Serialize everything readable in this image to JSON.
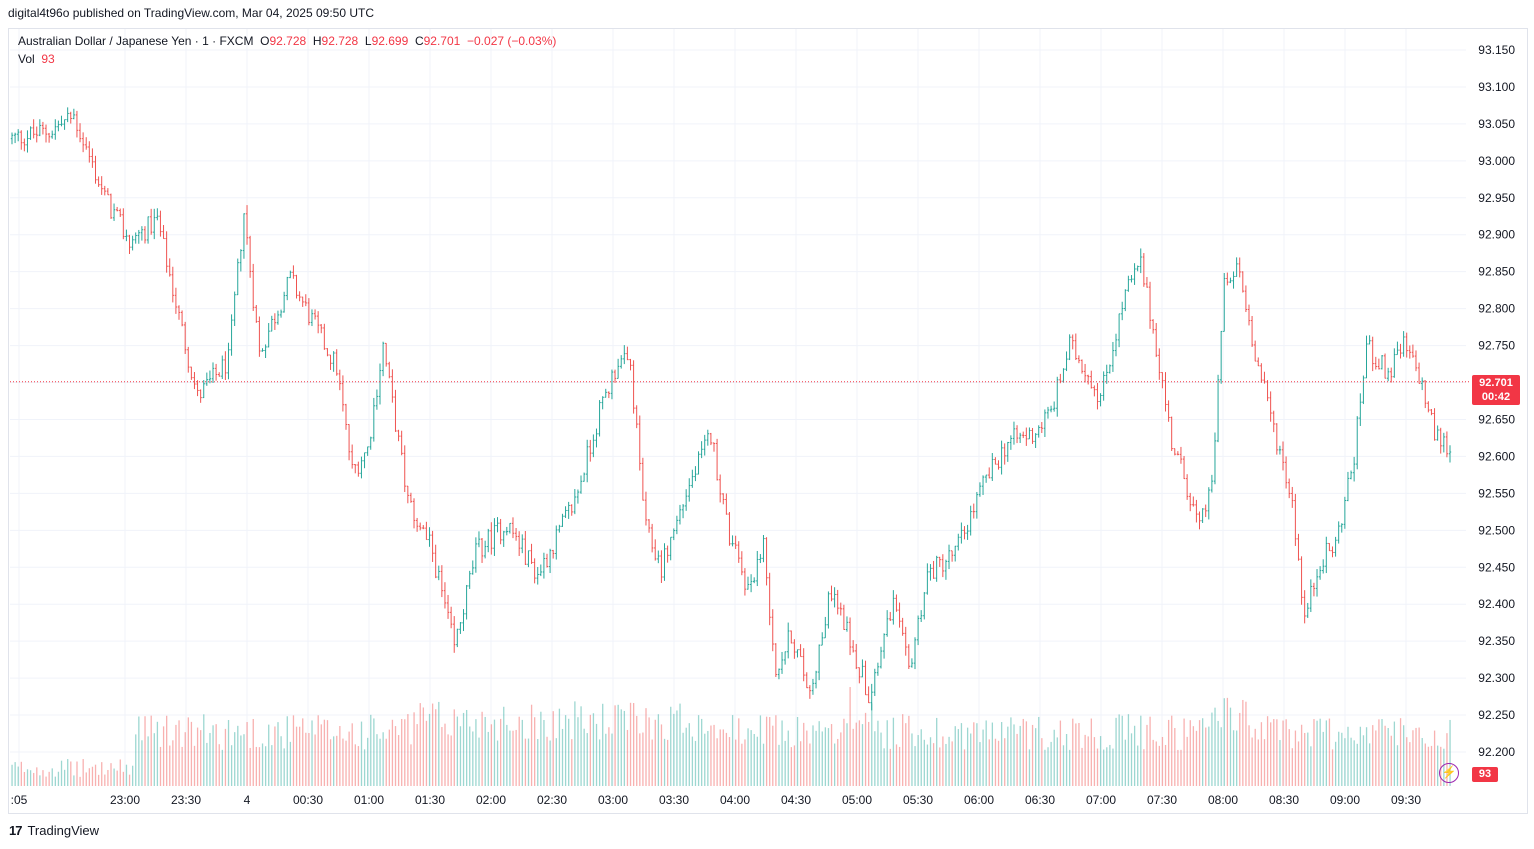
{
  "header": {
    "published_text": "digital4t96o published on TradingView.com, Mar 04, 2025 09:50 UTC"
  },
  "legend": {
    "symbol_text": "Australian Dollar / Japanese Yen · 1 · FXCM",
    "open_label": "O",
    "open": "92.728",
    "high_label": "H",
    "high": "92.728",
    "low_label": "L",
    "low": "92.699",
    "close_label": "C",
    "close": "92.701",
    "change": "−0.027 (−0.03%)",
    "vol_label": "Vol",
    "vol_value": "93"
  },
  "badges": {
    "last_price": "92.701",
    "countdown": "00:42",
    "volume": "93",
    "bolt_icon": "⚡"
  },
  "footer": {
    "brand": "TradingView",
    "logo_text": "17"
  },
  "colors": {
    "up": "#26a69a",
    "down": "#ef5350",
    "price_line": "#f23645",
    "grid": "#f0f3fa",
    "axis_text": "#131722"
  },
  "chart_data": {
    "type": "ohlc",
    "series_name": "Australian Dollar / Japanese Yen · 1 · FXCM",
    "ylim": [
      92.125,
      93.175
    ],
    "y_ticks": [
      "93.150",
      "93.100",
      "93.050",
      "93.000",
      "92.950",
      "92.900",
      "92.850",
      "92.800",
      "92.750",
      "92.700",
      "92.650",
      "92.600",
      "92.550",
      "92.500",
      "92.450",
      "92.400",
      "92.350",
      "92.300",
      "92.250",
      "92.200"
    ],
    "x_ticks": [
      ":05",
      "23:00",
      "23:30",
      "4",
      "00:30",
      "01:00",
      "01:30",
      "02:00",
      "02:30",
      "03:00",
      "03:30",
      "04:00",
      "04:30",
      "05:00",
      "05:30",
      "06:00",
      "06:30",
      "07:00",
      "07:30",
      "08:00",
      "08:30",
      "09:00",
      "09:30"
    ],
    "last_price": 92.701,
    "close_path": [
      [
        0,
        93.03
      ],
      [
        12,
        93.04
      ],
      [
        20,
        93.06
      ],
      [
        30,
        92.95
      ],
      [
        38,
        92.89
      ],
      [
        47,
        92.92
      ],
      [
        55,
        92.77
      ],
      [
        60,
        92.68
      ],
      [
        70,
        92.73
      ],
      [
        75,
        92.93
      ],
      [
        80,
        92.74
      ],
      [
        90,
        92.84
      ],
      [
        95,
        92.8
      ],
      [
        105,
        92.72
      ],
      [
        110,
        92.58
      ],
      [
        115,
        92.61
      ],
      [
        120,
        92.75
      ],
      [
        128,
        92.54
      ],
      [
        136,
        92.47
      ],
      [
        143,
        92.34
      ],
      [
        150,
        92.47
      ],
      [
        160,
        92.51
      ],
      [
        170,
        92.44
      ],
      [
        182,
        92.54
      ],
      [
        190,
        92.66
      ],
      [
        196,
        92.73
      ],
      [
        200,
        92.72
      ],
      [
        205,
        92.5
      ],
      [
        210,
        92.45
      ],
      [
        218,
        92.55
      ],
      [
        226,
        92.63
      ],
      [
        232,
        92.49
      ],
      [
        238,
        92.42
      ],
      [
        243,
        92.48
      ],
      [
        247,
        92.31
      ],
      [
        252,
        92.36
      ],
      [
        258,
        92.28
      ],
      [
        265,
        92.42
      ],
      [
        272,
        92.34
      ],
      [
        277,
        92.28
      ],
      [
        285,
        92.4
      ],
      [
        290,
        92.31
      ],
      [
        296,
        92.44
      ],
      [
        305,
        92.47
      ],
      [
        314,
        92.56
      ],
      [
        322,
        92.62
      ],
      [
        330,
        92.63
      ],
      [
        336,
        92.66
      ],
      [
        342,
        92.75
      ],
      [
        347,
        92.72
      ],
      [
        352,
        92.68
      ],
      [
        360,
        92.82
      ],
      [
        365,
        92.86
      ],
      [
        370,
        92.75
      ],
      [
        375,
        92.62
      ],
      [
        380,
        92.56
      ],
      [
        384,
        92.5
      ],
      [
        388,
        92.56
      ],
      [
        392,
        92.83
      ],
      [
        397,
        92.85
      ],
      [
        403,
        92.72
      ],
      [
        408,
        92.64
      ],
      [
        414,
        92.54
      ],
      [
        418,
        92.38
      ],
      [
        423,
        92.46
      ],
      [
        428,
        92.48
      ],
      [
        434,
        92.6
      ],
      [
        438,
        92.75
      ],
      [
        445,
        92.71
      ],
      [
        450,
        92.75
      ],
      [
        455,
        92.71
      ],
      [
        460,
        92.63
      ],
      [
        465,
        92.61
      ]
    ],
    "volume_scale_max": 150
  }
}
